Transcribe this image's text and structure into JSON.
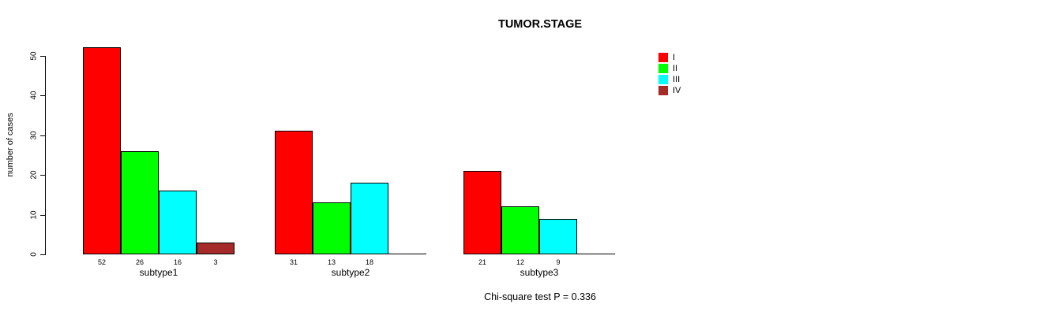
{
  "chart_data": {
    "type": "bar",
    "title": "TUMOR.STAGE",
    "ylabel": "number of cases",
    "ylim": [
      0,
      50
    ],
    "yticks": [
      0,
      10,
      20,
      30,
      40,
      50
    ],
    "grid": false,
    "legend_position": "top-right",
    "categories": [
      "subtype1",
      "subtype2",
      "subtype3"
    ],
    "series": [
      {
        "name": "I",
        "color": "#FF0000",
        "values": [
          52,
          31,
          21
        ]
      },
      {
        "name": "II",
        "color": "#00FF00",
        "values": [
          26,
          13,
          12
        ]
      },
      {
        "name": "III",
        "color": "#00FFFF",
        "values": [
          16,
          18,
          9
        ]
      },
      {
        "name": "IV",
        "color": "#A52A2A",
        "values": [
          3,
          0,
          0
        ]
      }
    ],
    "note": "Chi-square test P = 0.336"
  }
}
